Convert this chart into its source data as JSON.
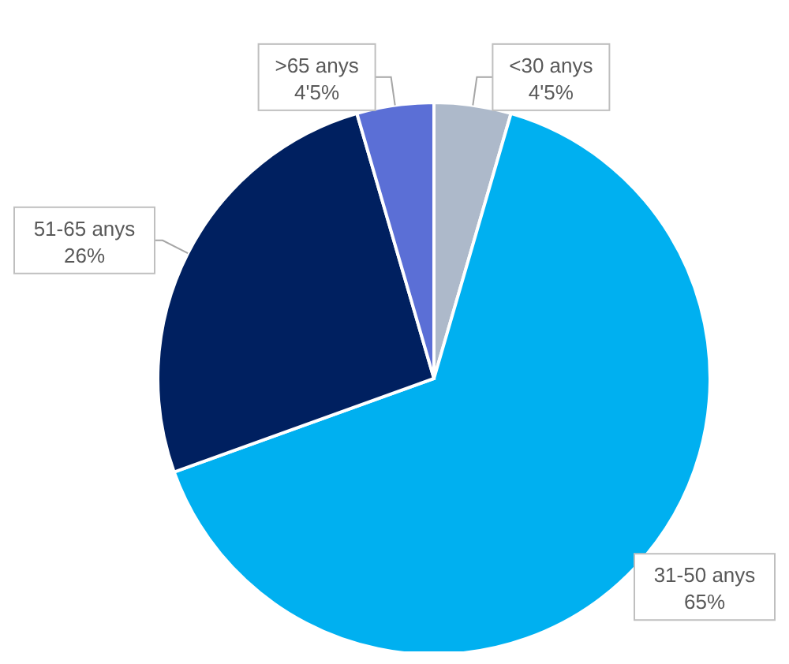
{
  "chart_data": {
    "type": "pie",
    "categories": [
      "<30 anys",
      "31-50 anys",
      "51-65 anys",
      ">65 anys"
    ],
    "values": [
      4.5,
      65,
      26,
      4.5
    ],
    "value_labels": [
      "4'5%",
      "65%",
      "26%",
      "4'5%"
    ],
    "colors": [
      "#adb9ca",
      "#00b0f0",
      "#002060",
      "#5b6fd6"
    ]
  }
}
